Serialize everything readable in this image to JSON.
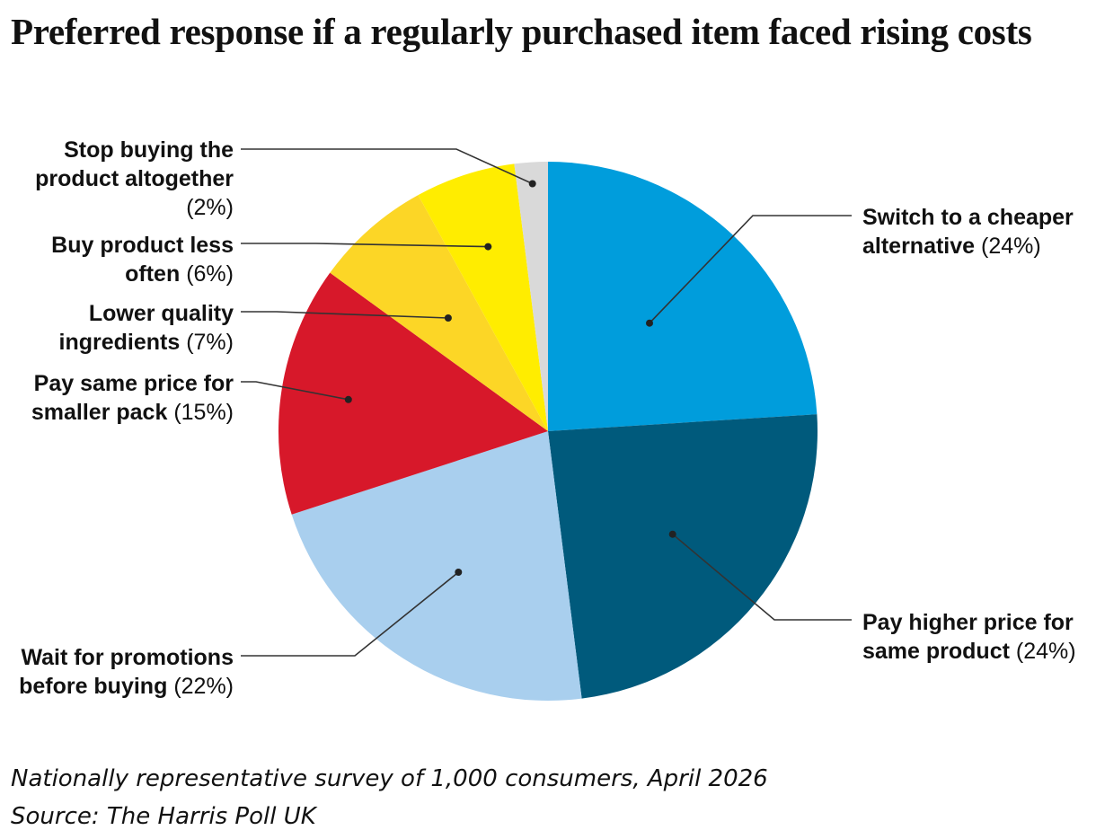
{
  "title": "Preferred response if a regularly purchased item faced rising costs",
  "note": "Nationally representative survey of 1,000 consumers, April 2026",
  "source": "Source: The Harris Poll UK",
  "chart_data": {
    "type": "pie",
    "slices": [
      {
        "label": "Switch to a cheaper alternative",
        "pct_label": "(24%)",
        "value": 24,
        "color": "#009ddc"
      },
      {
        "label": "Pay higher price for same product",
        "pct_label": "(24%)",
        "value": 24,
        "color": "#005a7c"
      },
      {
        "label": "Wait for promotions before buying",
        "pct_label": "(22%)",
        "value": 22,
        "color": "#a9cfee"
      },
      {
        "label": "Pay same price for smaller pack",
        "pct_label": "(15%)",
        "value": 15,
        "color": "#d7182a"
      },
      {
        "label": "Lower quality ingredients",
        "pct_label": "(7%)",
        "value": 7,
        "color": "#fcd626"
      },
      {
        "label": "Buy product less often",
        "pct_label": "(6%)",
        "value": 6,
        "color": "#ffed00"
      },
      {
        "label": "Stop buying the product altogether",
        "pct_label": "(2%)",
        "value": 2,
        "color": "#d9d9d9"
      }
    ]
  }
}
